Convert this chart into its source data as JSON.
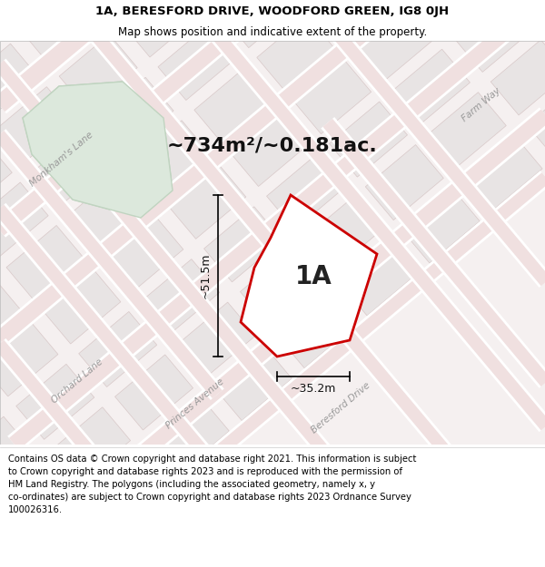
{
  "title_line1": "1A, BERESFORD DRIVE, WOODFORD GREEN, IG8 0JH",
  "title_line2": "Map shows position and indicative extent of the property.",
  "footer_text": "Contains OS data © Crown copyright and database right 2021. This information is subject\nto Crown copyright and database rights 2023 and is reproduced with the permission of\nHM Land Registry. The polygons (including the associated geometry, namely x, y\nco-ordinates) are subject to Crown copyright and database rights 2023 Ordnance Survey\n100026316.",
  "area_label": "~734m²/~0.181ac.",
  "property_label": "1A",
  "dim_height": "~51.5m",
  "dim_width": "~35.2m",
  "map_bg": "#f5f0f0",
  "road_fill": "#f0e0e0",
  "road_edge": "#e0b8b8",
  "block_fill": "#e8e4e4",
  "block_edge": "#d8c8c8",
  "green_fill": "#dce8dc",
  "green_edge": "#c0d4c0",
  "property_fill": "#ffffff",
  "property_edge": "#cc0000",
  "title_fontsize": 9.5,
  "subtitle_fontsize": 8.5,
  "footer_fontsize": 7.2,
  "area_fontsize": 16,
  "prop_label_fontsize": 20,
  "road_label_fontsize": 7.5,
  "dim_fontsize": 9
}
